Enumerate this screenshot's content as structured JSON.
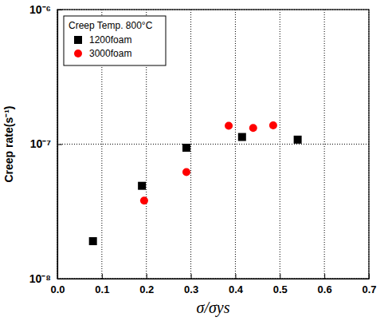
{
  "chart_data": {
    "type": "scatter",
    "x_label": "σ/σys",
    "y_label": "Creep rate(s⁻¹)",
    "legend_title": "Creep Temp. 800°C",
    "legend": "upper left",
    "log": "y",
    "grid": true,
    "xlim": [
      0,
      0.7
    ],
    "xticks": [
      {
        "value": 0,
        "label": "0.0"
      },
      0.1,
      0.2,
      0.3,
      0.4,
      0.5,
      0.6,
      0.7
    ],
    "ylim": [
      1e-08,
      1e-06
    ],
    "yticks": [
      {
        "value": 1e-08,
        "label": "10⁻⁸"
      },
      {
        "value": 1e-07,
        "label": "10⁻⁷"
      },
      {
        "value": 1e-06,
        "label": "10⁻⁶"
      }
    ],
    "series": [
      {
        "name": "1200foam",
        "color": "#000000",
        "marker": "square",
        "x": [
          0.08,
          0.19,
          0.29,
          0.415,
          0.54
        ],
        "values": [
          1.9e-08,
          4.9e-08,
          9.4e-08,
          1.13e-07,
          1.08e-07
        ]
      },
      {
        "name": "3000foam",
        "color": "#ff0000",
        "marker": "circle",
        "x": [
          0.195,
          0.29,
          0.385,
          0.44,
          0.485
        ],
        "values": [
          3.8e-08,
          6.2e-08,
          1.37e-07,
          1.32e-07,
          1.38e-07
        ]
      }
    ]
  }
}
